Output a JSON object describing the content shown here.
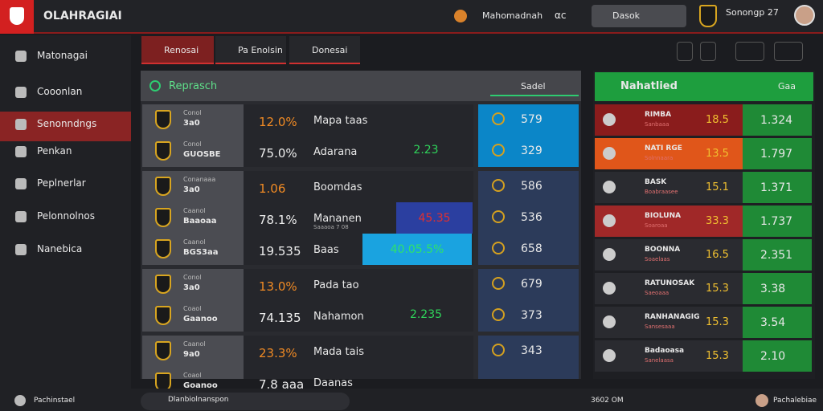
{
  "header": {
    "brand": "OLAHRAGIAI",
    "match": "Mahomadnah",
    "icon_label": "αc",
    "search": "Dasok",
    "user": "Sonongp 27"
  },
  "sidebar": [
    "Matonagai",
    "Cooonlan",
    "Senonndngs",
    "Penkan",
    "Peplnerlar",
    "Pelonnolnos",
    "Nanebica"
  ],
  "tabs": [
    "Renosai",
    "Pa Enolsin",
    "Donesai"
  ],
  "main": {
    "title": "Reprasch",
    "filter": "Sadel",
    "groups": [
      {
        "rows": [
          {
            "team": "Conol",
            "code": "3a0",
            "odd": "12.0%",
            "label": "Mapa taas",
            "score": "579"
          },
          {
            "team": "Conol",
            "code": "GUOSBE",
            "odd": "75.0%",
            "label": "Adarana",
            "extra": "2.23",
            "score": "329"
          }
        ]
      },
      {
        "rows": [
          {
            "team": "Conanaaa",
            "code": "3a0",
            "odd": "1.06",
            "label": "Boomdas",
            "score": "586"
          },
          {
            "team": "Caanol",
            "code": "Baaoaa",
            "odd": "78.1%",
            "label": "Mananen",
            "note": "Saaaoa 7 08",
            "extra": "45.35",
            "score": "536"
          },
          {
            "team": "Caanol",
            "code": "BGS3aa",
            "odd": "19.535",
            "label": "Baas",
            "extra": "40.05.5%",
            "score": "658"
          }
        ]
      },
      {
        "rows": [
          {
            "team": "Conol",
            "code": "3a0",
            "odd": "13.0%",
            "label": "Pada tao",
            "score": "679"
          },
          {
            "team": "Coaol",
            "code": "Gaanoo",
            "odd": "74.135",
            "label": "Nahamon",
            "extra": "2.235",
            "score": "373"
          }
        ]
      },
      {
        "rows": [
          {
            "team": "Caanol",
            "code": "9a0",
            "odd": "23.3%",
            "label": "Mada tais",
            "score": "343"
          },
          {
            "team": "Coaol",
            "code": "Goanoo",
            "odd": "7.8 aaa",
            "label": "Daanas"
          }
        ]
      }
    ]
  },
  "side_panel": {
    "title": "Nahatlied",
    "filter": "Gaa",
    "rows": [
      {
        "name": "RIMBA",
        "sub": "Sanbaaa",
        "odd": "18.5",
        "value": "1.324"
      },
      {
        "name": "NATI RGE",
        "sub": "Solnnaara",
        "odd": "13.5",
        "value": "1.797"
      },
      {
        "name": "BASK",
        "sub": "Boabraasee",
        "odd": "15.1",
        "value": "1.371"
      },
      {
        "name": "BIOLUNA",
        "sub": "Soaroaa",
        "odd": "33.3",
        "value": "1.737"
      },
      {
        "name": "BOONNA",
        "sub": "Soaelaas",
        "odd": "16.5",
        "value": "2.351"
      },
      {
        "name": "RATUNOSAK",
        "sub": "Saeoaaa",
        "odd": "15.3",
        "value": "3.38"
      },
      {
        "name": "RANHANAGIG",
        "sub": "Sansesaaa",
        "odd": "15.3",
        "value": "3.54"
      },
      {
        "name": "Badaoasa",
        "sub": "Sanelaasa",
        "odd": "15.3",
        "value": "2.10"
      }
    ]
  },
  "footer": {
    "left": "Pachinstael",
    "search": "Dlanbiolnanspon",
    "time": "3602 OM",
    "user": "Pachalebiae"
  }
}
